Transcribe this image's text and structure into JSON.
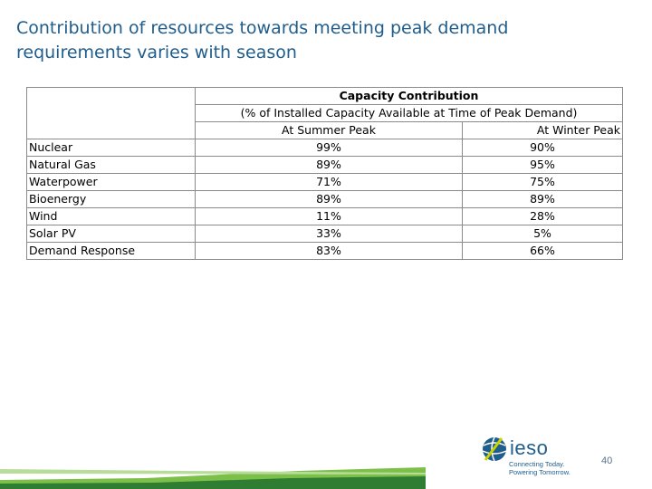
{
  "slide": {
    "title_line1": "Contribution of resources towards meeting peak demand",
    "title_line2": "requirements varies with season",
    "page_number": "40"
  },
  "table": {
    "header_main": "Capacity Contribution",
    "header_sub": "(% of Installed Capacity Available at Time of Peak Demand)",
    "col_summer": "At Summer Peak",
    "col_winter": "At Winter Peak",
    "rows": [
      {
        "resource": "Nuclear",
        "summer": "99%",
        "winter": "90%"
      },
      {
        "resource": "Natural Gas",
        "summer": "89%",
        "winter": "95%"
      },
      {
        "resource": "Waterpower",
        "summer": "71%",
        "winter": "75%"
      },
      {
        "resource": "Bioenergy",
        "summer": "89%",
        "winter": "89%"
      },
      {
        "resource": "Wind",
        "summer": "11%",
        "winter": "28%"
      },
      {
        "resource": "Solar PV",
        "summer": "33%",
        "winter": "5%"
      },
      {
        "resource": "Demand Response",
        "summer": "83%",
        "winter": "66%"
      }
    ]
  },
  "logo": {
    "name": "ieso",
    "tagline1": "Connecting Today.",
    "tagline2": "Powering Tomorrow."
  },
  "colors": {
    "title": "#1f5d8c",
    "footer_green": "#5aa63a",
    "footer_dark_green": "#2e7d32"
  }
}
